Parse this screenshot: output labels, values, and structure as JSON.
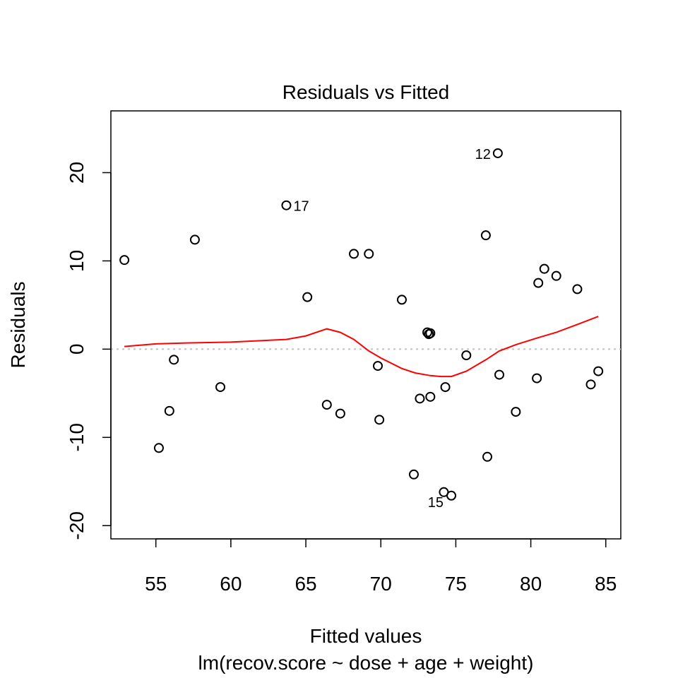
{
  "chart_data": {
    "type": "scatter",
    "title": "Residuals vs Fitted",
    "xlabel": "Fitted values",
    "subtitle": "lm(recov.score ~ dose + age + weight)",
    "ylabel": "Residuals",
    "xlim": [
      52,
      86
    ],
    "ylim": [
      -21.5,
      27
    ],
    "x_ticks": [
      55,
      60,
      65,
      70,
      75,
      80,
      85
    ],
    "y_ticks": [
      -20,
      -10,
      0,
      10,
      20
    ],
    "x_tick_labels": [
      "55",
      "60",
      "65",
      "70",
      "75",
      "80",
      "85"
    ],
    "y_tick_labels": [
      "-20",
      "-10",
      "0",
      "10",
      "20"
    ],
    "reference_line_y": 0,
    "points": [
      {
        "x": 52.9,
        "y": 10.1
      },
      {
        "x": 55.2,
        "y": -11.2
      },
      {
        "x": 55.9,
        "y": -7.0
      },
      {
        "x": 56.2,
        "y": -1.2
      },
      {
        "x": 57.6,
        "y": 12.4
      },
      {
        "x": 59.3,
        "y": -4.3
      },
      {
        "x": 63.7,
        "y": 16.3,
        "label": "17"
      },
      {
        "x": 65.1,
        "y": 5.9
      },
      {
        "x": 66.4,
        "y": -6.3
      },
      {
        "x": 67.3,
        "y": -7.3
      },
      {
        "x": 68.2,
        "y": 10.8
      },
      {
        "x": 69.2,
        "y": 10.8
      },
      {
        "x": 69.8,
        "y": -1.9
      },
      {
        "x": 69.9,
        "y": -8.0
      },
      {
        "x": 71.4,
        "y": 5.6
      },
      {
        "x": 72.2,
        "y": -14.2
      },
      {
        "x": 72.6,
        "y": -5.6
      },
      {
        "x": 73.1,
        "y": 1.9
      },
      {
        "x": 73.2,
        "y": 1.7
      },
      {
        "x": 73.3,
        "y": 1.8
      },
      {
        "x": 73.3,
        "y": -5.4
      },
      {
        "x": 74.2,
        "y": -16.2
      },
      {
        "x": 74.3,
        "y": -4.3
      },
      {
        "x": 74.7,
        "y": -16.6,
        "label": "15"
      },
      {
        "x": 75.7,
        "y": -0.7
      },
      {
        "x": 77.0,
        "y": 12.9
      },
      {
        "x": 77.1,
        "y": -12.2
      },
      {
        "x": 77.8,
        "y": 22.2,
        "label": "12"
      },
      {
        "x": 77.9,
        "y": -2.9
      },
      {
        "x": 79.0,
        "y": -7.1
      },
      {
        "x": 80.4,
        "y": -3.3
      },
      {
        "x": 80.5,
        "y": 7.5
      },
      {
        "x": 80.9,
        "y": 9.1
      },
      {
        "x": 81.7,
        "y": 8.3
      },
      {
        "x": 83.1,
        "y": 6.8
      },
      {
        "x": 84.0,
        "y": -4.0
      },
      {
        "x": 84.5,
        "y": -2.5
      }
    ],
    "smooth_line": [
      {
        "x": 52.9,
        "y": 0.3
      },
      {
        "x": 55.0,
        "y": 0.6
      },
      {
        "x": 57.0,
        "y": 0.7
      },
      {
        "x": 60.0,
        "y": 0.8
      },
      {
        "x": 63.7,
        "y": 1.1
      },
      {
        "x": 65.0,
        "y": 1.5
      },
      {
        "x": 66.4,
        "y": 2.3
      },
      {
        "x": 67.3,
        "y": 1.9
      },
      {
        "x": 68.2,
        "y": 1.1
      },
      {
        "x": 69.2,
        "y": -0.2
      },
      {
        "x": 70.0,
        "y": -1.0
      },
      {
        "x": 71.4,
        "y": -2.2
      },
      {
        "x": 72.3,
        "y": -2.7
      },
      {
        "x": 73.3,
        "y": -3.0
      },
      {
        "x": 74.0,
        "y": -3.1
      },
      {
        "x": 74.7,
        "y": -3.1
      },
      {
        "x": 75.7,
        "y": -2.5
      },
      {
        "x": 77.0,
        "y": -1.2
      },
      {
        "x": 77.9,
        "y": -0.2
      },
      {
        "x": 79.0,
        "y": 0.5
      },
      {
        "x": 80.5,
        "y": 1.3
      },
      {
        "x": 81.7,
        "y": 1.9
      },
      {
        "x": 83.1,
        "y": 2.8
      },
      {
        "x": 84.5,
        "y": 3.7
      }
    ],
    "grid": false,
    "colors": {
      "points": "#000000",
      "smooth_line": "#ff0000",
      "reference_line": "#c0c0c0",
      "axis": "#000000"
    }
  }
}
